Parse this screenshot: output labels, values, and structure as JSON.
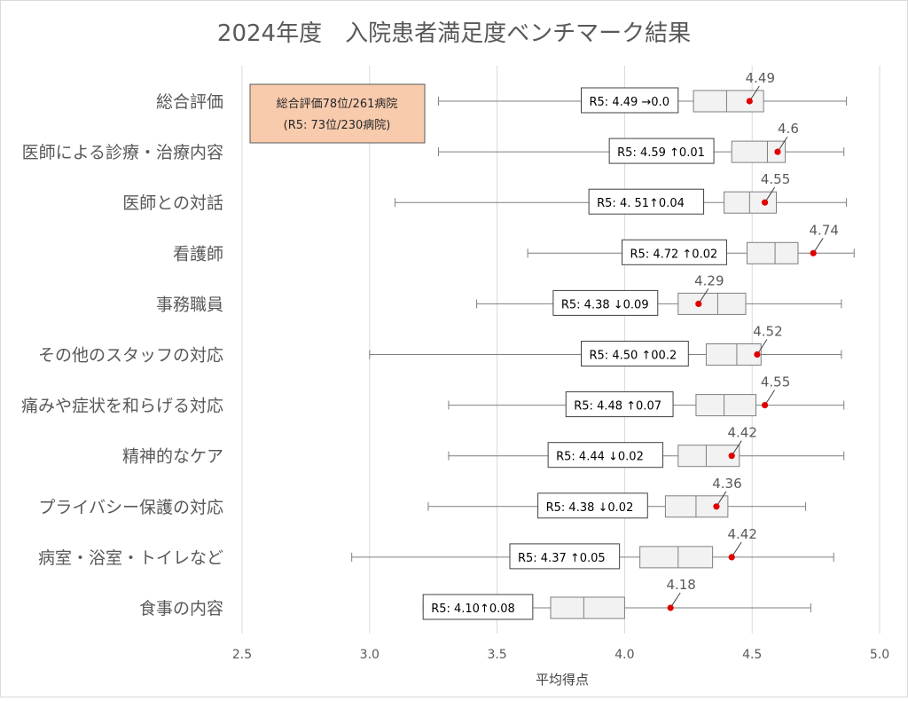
{
  "chart_data": {
    "type": "boxplot",
    "title": "2024年度　入院患者満足度ベンチマーク結果",
    "xlabel": "平均得点",
    "ylabel": "",
    "xlim": [
      2.5,
      5.0
    ],
    "xticks": [
      2.5,
      3.0,
      3.5,
      4.0,
      4.5,
      5.0
    ],
    "tick_labels": [
      "2.5",
      "3.0",
      "3.5",
      "4.0",
      "4.5",
      "5.0"
    ],
    "grid": "vertical",
    "colors": {
      "box_fill": "#f2f2f2",
      "box_stroke": "#7f7f7f",
      "point": "#e00000",
      "grid": "#d9d9d9",
      "summary_fill": "#f8cbad",
      "summary_stroke": "#5a5a5a"
    },
    "summary_box": {
      "line1": "総合評価78位/261病院",
      "line2": "(R5: 73位/230病院)"
    },
    "categories": [
      {
        "label": "総合評価",
        "min": 3.27,
        "q1": 4.27,
        "median": 4.4,
        "q3": 4.545,
        "max": 4.87,
        "value": 4.49,
        "value_label": "4.49",
        "prev_label": "R5:  4.49 →0.0",
        "prev_lo": 3.83,
        "prev_hi": 4.21
      },
      {
        "label": "医師による診療・治療内容",
        "min": 3.27,
        "q1": 4.42,
        "median": 4.56,
        "q3": 4.63,
        "max": 4.86,
        "value": 4.6,
        "value_label": "4.6",
        "prev_label": "R5:  4.59 ↑0.01",
        "prev_lo": 3.94,
        "prev_hi": 4.35
      },
      {
        "label": "医師との対話",
        "min": 3.1,
        "q1": 4.39,
        "median": 4.49,
        "q3": 4.595,
        "max": 4.87,
        "value": 4.55,
        "value_label": "4.55",
        "prev_label": "R5:  4. 51↑0.04",
        "prev_lo": 3.86,
        "prev_hi": 4.31
      },
      {
        "label": "看護師",
        "min": 3.62,
        "q1": 4.48,
        "median": 4.59,
        "q3": 4.68,
        "max": 4.9,
        "value": 4.74,
        "value_label": "4.74",
        "prev_label": "R5:  4.72 ↑0.02",
        "prev_lo": 3.99,
        "prev_hi": 4.4
      },
      {
        "label": "事務職員",
        "min": 3.42,
        "q1": 4.21,
        "median": 4.365,
        "q3": 4.475,
        "max": 4.85,
        "value": 4.29,
        "value_label": "4.29",
        "prev_label": "R5:  4.38 ↓0.09",
        "prev_lo": 3.72,
        "prev_hi": 4.13
      },
      {
        "label": "その他のスタッフの対応",
        "min": 3.0,
        "q1": 4.32,
        "median": 4.44,
        "q3": 4.535,
        "max": 4.85,
        "value": 4.52,
        "value_label": "4.52",
        "prev_label": "R5:  4.50 ↑00.2",
        "prev_lo": 3.83,
        "prev_hi": 4.25
      },
      {
        "label": "痛みや症状を和らげる対応",
        "min": 3.31,
        "q1": 4.28,
        "median": 4.39,
        "q3": 4.515,
        "max": 4.86,
        "value": 4.55,
        "value_label": "4.55",
        "prev_label": "R5:  4.48 ↑0.07",
        "prev_lo": 3.77,
        "prev_hi": 4.19
      },
      {
        "label": "精神的なケア",
        "min": 3.31,
        "q1": 4.21,
        "median": 4.32,
        "q3": 4.45,
        "max": 4.86,
        "value": 4.42,
        "value_label": "4.42",
        "prev_label": "R5:  4.44 ↓0.02",
        "prev_lo": 3.7,
        "prev_hi": 4.15
      },
      {
        "label": "プライバシー保護の対応",
        "min": 3.23,
        "q1": 4.16,
        "median": 4.28,
        "q3": 4.405,
        "max": 4.71,
        "value": 4.36,
        "value_label": "4.36",
        "prev_label": "R5:  4.38 ↓0.02",
        "prev_lo": 3.66,
        "prev_hi": 4.09
      },
      {
        "label": "病室・浴室・トイレなど",
        "min": 2.93,
        "q1": 4.06,
        "median": 4.21,
        "q3": 4.345,
        "max": 4.82,
        "value": 4.42,
        "value_label": "4.42",
        "prev_label": "R5:  4.37 ↑0.05",
        "prev_lo": 3.55,
        "prev_hi": 3.98
      },
      {
        "label": "食事の内容",
        "min": 3.21,
        "q1": 3.71,
        "median": 3.84,
        "q3": 4.0,
        "max": 4.73,
        "value": 4.18,
        "value_label": "4.18",
        "prev_label": "R5:  4.10↑0.08",
        "prev_lo": 3.21,
        "prev_hi": 3.64
      }
    ]
  }
}
